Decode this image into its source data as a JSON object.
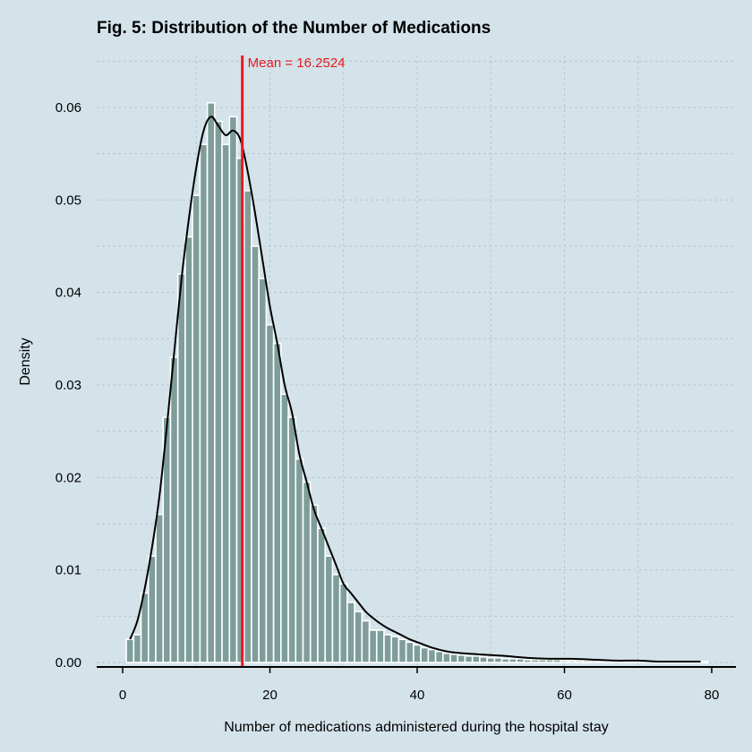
{
  "chart_data": {
    "type": "bar",
    "title": "Fig. 5: Distribution of the Number of Medications",
    "xlabel": "Number of medications administered during the hospital stay",
    "ylabel": "Density",
    "xlim": [
      0,
      80
    ],
    "ylim": [
      0,
      0.06
    ],
    "xticks": [
      0,
      20,
      40,
      60,
      80
    ],
    "yticks": [
      0.0,
      0.01,
      0.02,
      0.03,
      0.04,
      0.05,
      0.06
    ],
    "xtick_labels": [
      "0",
      "20",
      "40",
      "60",
      "80"
    ],
    "ytick_labels": [
      "0.00",
      "0.01",
      "0.02",
      "0.03",
      "0.04",
      "0.05",
      "0.06"
    ],
    "grid": true,
    "mean": 16.2524,
    "mean_label": "Mean =  16.2524",
    "colors": {
      "bar": "#7f9e9b",
      "bar_edge": "#ffffff",
      "density": "#000000",
      "mean_line": "#e8191f",
      "background": "#d4e3ea"
    },
    "series": [
      {
        "kind": "histogram",
        "x": [
          1,
          2,
          3,
          4,
          5,
          6,
          7,
          8,
          9,
          10,
          11,
          12,
          13,
          14,
          15,
          16,
          17,
          18,
          19,
          20,
          21,
          22,
          23,
          24,
          25,
          26,
          27,
          28,
          29,
          30,
          31,
          32,
          33,
          34,
          35,
          36,
          37,
          38,
          39,
          40,
          41,
          42,
          43,
          44,
          45,
          46,
          47,
          48,
          49,
          50,
          51,
          52,
          53,
          54,
          55,
          56,
          57,
          58,
          59,
          60,
          61,
          62,
          63,
          64,
          65,
          66,
          67,
          68,
          69,
          70,
          71,
          72,
          73,
          74,
          75,
          76,
          77,
          78,
          79
        ],
        "values": [
          0.0025,
          0.003,
          0.0075,
          0.0115,
          0.016,
          0.0265,
          0.033,
          0.042,
          0.046,
          0.0505,
          0.056,
          0.0605,
          0.0585,
          0.056,
          0.059,
          0.0545,
          0.051,
          0.045,
          0.0415,
          0.0365,
          0.0345,
          0.029,
          0.0265,
          0.022,
          0.0195,
          0.017,
          0.0145,
          0.0115,
          0.0095,
          0.0085,
          0.0065,
          0.0055,
          0.0045,
          0.0035,
          0.0035,
          0.003,
          0.0028,
          0.0025,
          0.0022,
          0.0019,
          0.0016,
          0.0014,
          0.0012,
          0.001,
          0.0009,
          0.0008,
          0.0007,
          0.0007,
          0.0006,
          0.0005,
          0.0005,
          0.0004,
          0.0004,
          0.0004,
          0.0003,
          0.0003,
          0.0003,
          0.0003,
          0.0003,
          0.0002,
          0.0002,
          0.0002,
          0.0002,
          0.0002,
          0.0001,
          0.0001,
          0.0001,
          0.0001,
          0.0001,
          0.0001,
          0.0001,
          0.0001,
          0.0001,
          0.0001,
          0.0001,
          0.0001,
          0.0001,
          0.0001,
          0.0001
        ]
      },
      {
        "kind": "density",
        "x": [
          1,
          2,
          3,
          4,
          5,
          6,
          7,
          8,
          9,
          10,
          11,
          12,
          13,
          14,
          15,
          16,
          17,
          18,
          19,
          20,
          21,
          22,
          23,
          24,
          25,
          26,
          27,
          28,
          29,
          30,
          31,
          32,
          33,
          34,
          35,
          36,
          37,
          38,
          39,
          40,
          42,
          44,
          46,
          48,
          50,
          52,
          55,
          58,
          61,
          64,
          67,
          70,
          73,
          76,
          78.5
        ],
        "values": [
          0.0025,
          0.0045,
          0.008,
          0.0125,
          0.018,
          0.0255,
          0.0335,
          0.0415,
          0.048,
          0.0535,
          0.0575,
          0.059,
          0.058,
          0.057,
          0.0575,
          0.0565,
          0.053,
          0.0485,
          0.0435,
          0.0385,
          0.0345,
          0.03,
          0.027,
          0.0225,
          0.0195,
          0.0165,
          0.0145,
          0.0125,
          0.0105,
          0.0085,
          0.0075,
          0.0065,
          0.0055,
          0.0048,
          0.0042,
          0.0037,
          0.0033,
          0.0029,
          0.0025,
          0.0022,
          0.0016,
          0.0012,
          0.001,
          0.0009,
          0.0008,
          0.0007,
          0.0005,
          0.0004,
          0.0004,
          0.0003,
          0.0002,
          0.0002,
          0.0001,
          0.0001,
          0.0001
        ]
      }
    ]
  }
}
